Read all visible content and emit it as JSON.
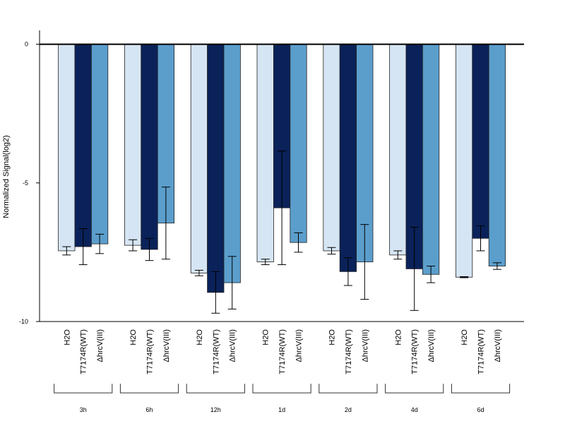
{
  "chart_data": {
    "type": "bar",
    "ylabel": "Normalized Signal(log2)",
    "ylim": [
      -10,
      0.5
    ],
    "yticks": [
      0,
      -5,
      -10
    ],
    "groups": [
      "3h",
      "6h",
      "12h",
      "1d",
      "2d",
      "4d",
      "6d"
    ],
    "series": [
      {
        "name": "H2O",
        "color": "#d6e5f4",
        "values": [
          -7.45,
          -7.25,
          -8.25,
          -7.85,
          -7.45,
          -7.6,
          -8.4
        ],
        "error": [
          0.15,
          0.2,
          0.1,
          0.1,
          0.12,
          0.15,
          0.02
        ]
      },
      {
        "name": "T7174R(WT)",
        "color": "#0a2259",
        "values": [
          -7.3,
          -7.4,
          -8.95,
          -5.9,
          -8.2,
          -8.1,
          -7.0
        ],
        "error": [
          0.65,
          0.4,
          0.75,
          2.05,
          0.5,
          1.5,
          0.45
        ]
      },
      {
        "name": "ΔhrcV(III)",
        "color": "#5b9ecc",
        "values": [
          -7.2,
          -6.45,
          -8.6,
          -7.15,
          -7.85,
          -8.3,
          -8.0
        ],
        "error": [
          0.35,
          1.3,
          0.95,
          0.35,
          1.35,
          0.3,
          0.12
        ]
      }
    ]
  }
}
